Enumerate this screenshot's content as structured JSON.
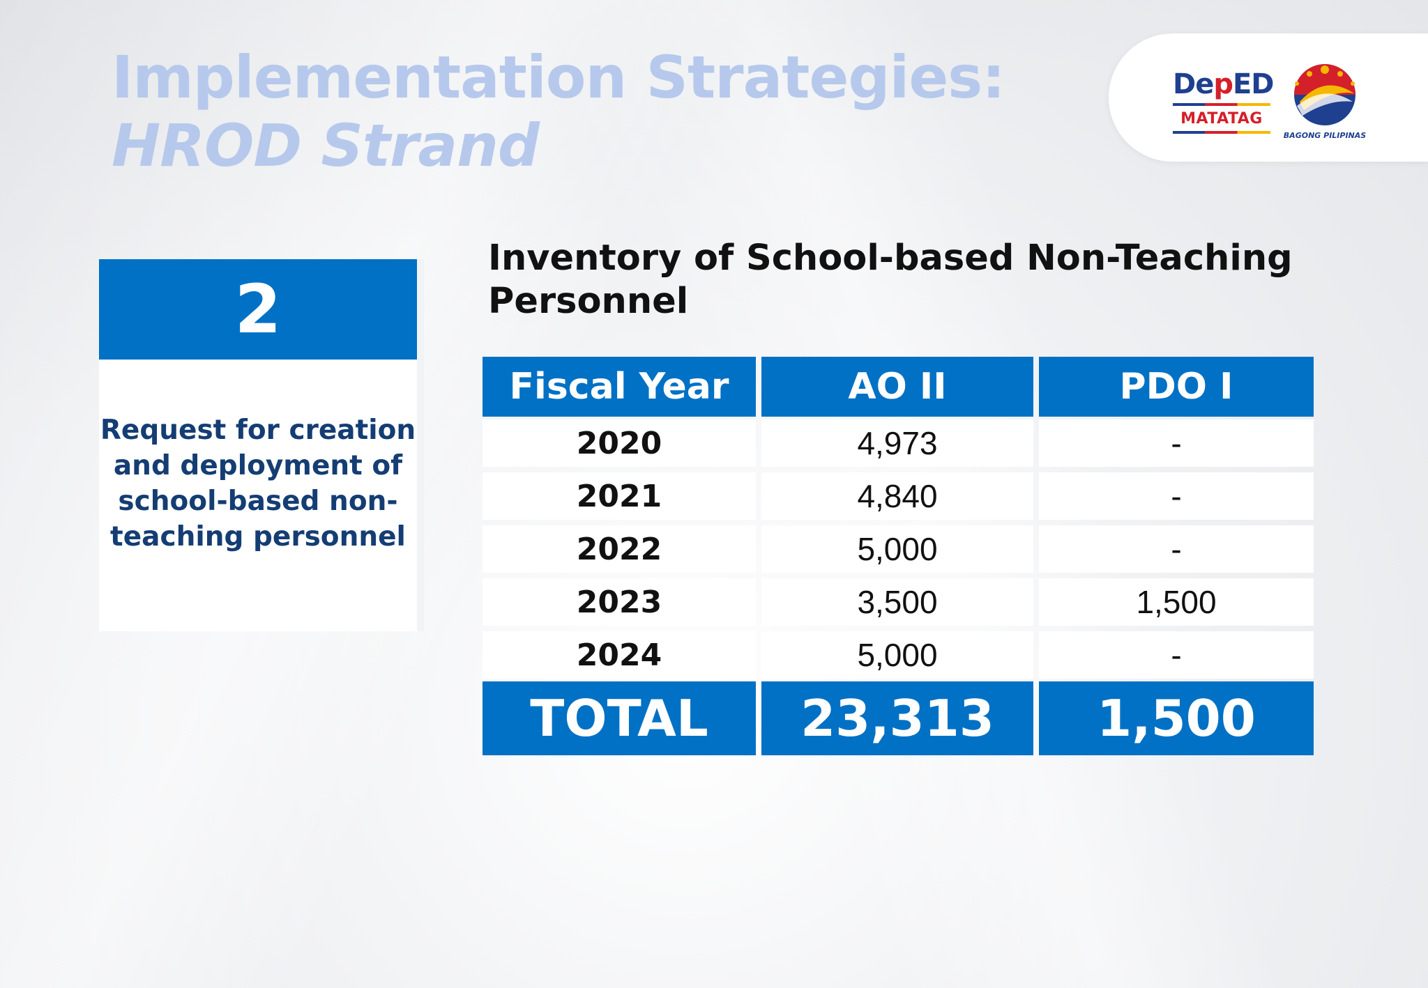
{
  "header": {
    "title_line1": "Implementation Strategies:",
    "title_line2": "HROD Strand"
  },
  "logos": {
    "deped_prefix": "De",
    "deped_mid": "p",
    "deped_suffix": "ED",
    "matatag": "MATATAG",
    "bagong_pilipinas": "BAGONG PILIPINAS",
    "deped_icon": "deped-torch-logo",
    "bp_icon": "bagong-pilipinas-seal"
  },
  "card": {
    "number": "2",
    "description": "Request for creation and deployment of school-based non-teaching personnel"
  },
  "table": {
    "title": "Inventory of School-based Non-Teaching Personnel",
    "columns": [
      "Fiscal Year",
      "AO II",
      "PDO I"
    ],
    "rows": [
      [
        "2020",
        "4,973",
        "-"
      ],
      [
        "2021",
        "4,840",
        "-"
      ],
      [
        "2022",
        "5,000",
        "-"
      ],
      [
        "2023",
        "3,500",
        "1,500"
      ],
      [
        "2024",
        "5,000",
        "-"
      ]
    ],
    "total": [
      "TOTAL",
      "23,313",
      "1,500"
    ]
  },
  "colors": {
    "primary_blue": "#0071c5",
    "heading_light_blue": "#b6c9ec",
    "card_text_navy": "#143d73",
    "deped_red": "#d4202a"
  }
}
